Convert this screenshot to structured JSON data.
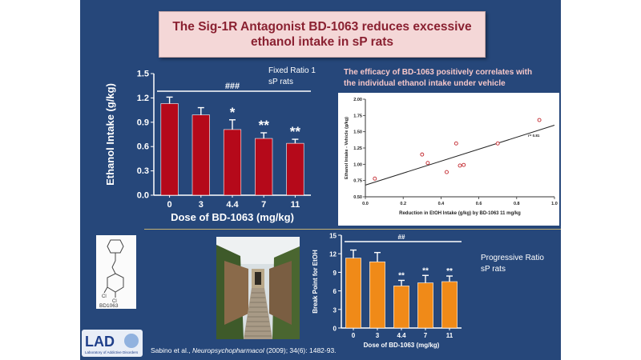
{
  "title": {
    "line1": "The Sig-1R Antagonist BD-1063 reduces excessive",
    "line2": "ethanol intake in sP rats"
  },
  "notes": {
    "fixed_ratio_line1": "Fixed Ratio 1",
    "fixed_ratio_line2": "sP rats",
    "progressive_line1": "Progressive Ratio",
    "progressive_line2": "sP rats"
  },
  "correlation_title": {
    "line1": "The efficacy of BD-1063 positively correlates with",
    "line2": "the individual ethanol intake under vehicle"
  },
  "molecule_label": "BD1063",
  "logo": {
    "text": "LAD",
    "subtext": "Laboratory of Addictive Disorders"
  },
  "citation": {
    "prefix": "Sabino et al., ",
    "journal": "Neuropsychopharmacol",
    "suffix": " (2009); 34(6): 1482-93."
  },
  "colors": {
    "slide_bg": "#26477a",
    "bar_red": "#b5091a",
    "bar_orange": "#f08a18",
    "title_text": "#8a2131",
    "title_bg": "#f4d7d7"
  },
  "chart_data": [
    {
      "id": "fixed-ratio",
      "type": "bar",
      "categories": [
        "0",
        "3",
        "4.4",
        "7",
        "11"
      ],
      "values": [
        1.13,
        0.99,
        0.81,
        0.7,
        0.64
      ],
      "errors": [
        0.08,
        0.09,
        0.12,
        0.07,
        0.05
      ],
      "significance": [
        "",
        "",
        "*",
        "**",
        "**"
      ],
      "bracket_label": "###",
      "xlabel": "Dose of BD-1063 (mg/kg)",
      "ylabel": "Ethanol Intake (g/kg)",
      "ylim": [
        0,
        1.5
      ],
      "yticks": [
        "0.0",
        "0.3",
        "0.6",
        "0.9",
        "1.2",
        "1.5"
      ],
      "color": "#b5091a"
    },
    {
      "id": "correlation",
      "type": "scatter",
      "x": [
        0.05,
        0.3,
        0.33,
        0.43,
        0.48,
        0.5,
        0.52,
        0.7,
        0.92
      ],
      "y": [
        0.78,
        1.15,
        1.02,
        0.88,
        1.32,
        0.98,
        0.99,
        1.32,
        1.68
      ],
      "trendline": {
        "x": [
          0.0,
          1.0
        ],
        "y": [
          0.68,
          1.6
        ]
      },
      "annotation": "r= 0.81",
      "xlabel": "Reduction in EtOH Intake (g/kg) by BD-1063 11 mg/kg",
      "ylabel": "Ethanol Intake - Vehicle (g/kg)",
      "xlim": [
        0,
        1
      ],
      "ylim": [
        0.5,
        2.0
      ],
      "xticks": [
        "0.0",
        "0.2",
        "0.4",
        "0.6",
        "0.8",
        "1.0"
      ],
      "yticks": [
        "0.50",
        "0.75",
        "1.00",
        "1.25",
        "1.50",
        "1.75",
        "2.00"
      ]
    },
    {
      "id": "progressive-ratio",
      "type": "bar",
      "categories": [
        "0",
        "3",
        "4.4",
        "7",
        "11"
      ],
      "values": [
        11.3,
        10.7,
        6.8,
        7.3,
        7.5
      ],
      "errors": [
        1.3,
        1.5,
        0.9,
        1.2,
        0.9
      ],
      "significance": [
        "",
        "",
        "**",
        "**",
        "**"
      ],
      "bracket_label": "##",
      "xlabel": "Dose of BD-1063 (mg/kg)",
      "ylabel": "Break Point for EtOH",
      "ylim": [
        0,
        15
      ],
      "yticks": [
        "0",
        "3",
        "6",
        "9",
        "12",
        "15"
      ],
      "color": "#f08a18"
    }
  ]
}
